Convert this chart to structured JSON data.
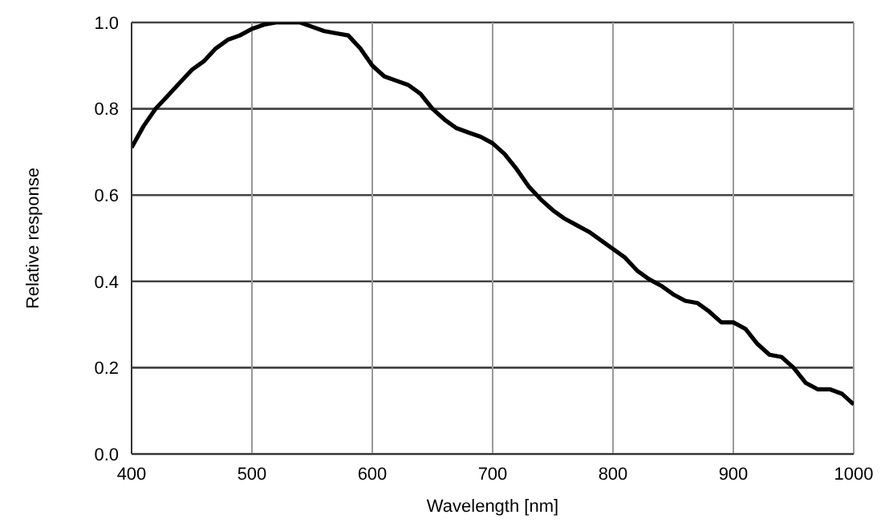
{
  "chart_data": {
    "type": "line",
    "xlabel": "Wavelength [nm]",
    "ylabel": "Relative response",
    "x": [
      400,
      410,
      420,
      430,
      440,
      450,
      460,
      470,
      480,
      490,
      500,
      510,
      520,
      530,
      540,
      550,
      560,
      570,
      580,
      590,
      600,
      610,
      620,
      630,
      640,
      650,
      660,
      670,
      680,
      690,
      700,
      710,
      720,
      730,
      740,
      750,
      760,
      770,
      780,
      790,
      800,
      810,
      820,
      830,
      840,
      850,
      860,
      870,
      880,
      890,
      900,
      910,
      920,
      930,
      940,
      950,
      960,
      970,
      980,
      990,
      1000
    ],
    "series": [
      {
        "color": "#000000",
        "values": [
          0.71,
          0.76,
          0.8,
          0.83,
          0.86,
          0.89,
          0.91,
          0.94,
          0.96,
          0.97,
          0.985,
          0.995,
          1.0,
          1.0,
          1.0,
          0.99,
          0.98,
          0.975,
          0.97,
          0.94,
          0.9,
          0.875,
          0.865,
          0.855,
          0.835,
          0.8,
          0.775,
          0.755,
          0.745,
          0.735,
          0.72,
          0.695,
          0.66,
          0.62,
          0.59,
          0.565,
          0.545,
          0.53,
          0.515,
          0.495,
          0.475,
          0.455,
          0.425,
          0.405,
          0.39,
          0.37,
          0.355,
          0.35,
          0.33,
          0.305,
          0.305,
          0.29,
          0.255,
          0.23,
          0.225,
          0.2,
          0.165,
          0.15,
          0.15,
          0.14,
          0.115
        ]
      }
    ],
    "xlim": [
      400,
      1000
    ],
    "xticks": [
      400,
      500,
      600,
      700,
      800,
      900,
      1000
    ],
    "ylim": [
      0,
      1
    ],
    "yticks": [
      {
        "value": 0,
        "label": "0.0"
      },
      {
        "value": 0.2,
        "label": "0.2"
      },
      {
        "value": 0.4,
        "label": "0.4"
      },
      {
        "value": 0.6,
        "label": "0.6"
      },
      {
        "value": 0.8,
        "label": "0.8"
      },
      {
        "value": 1,
        "label": "1.0"
      }
    ],
    "grid": true,
    "marker": "none",
    "line_style": "solid"
  }
}
